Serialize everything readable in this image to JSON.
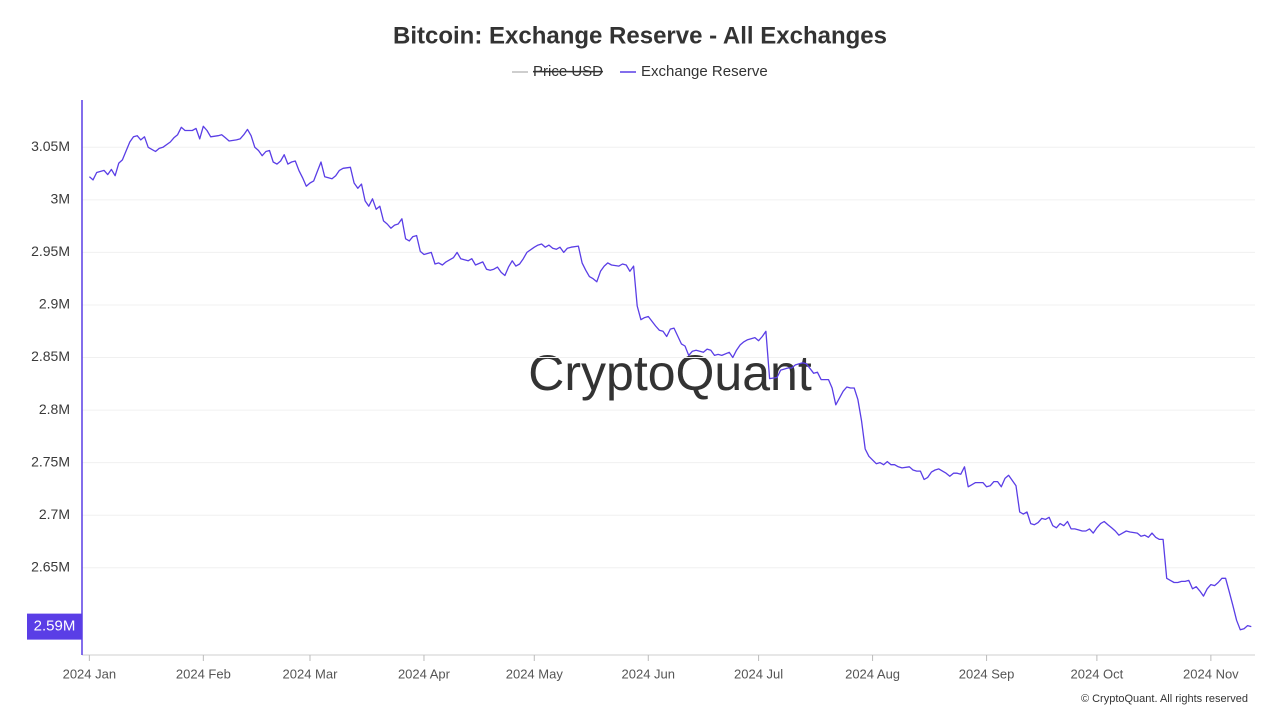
{
  "chart_data": {
    "type": "line",
    "title": "Bitcoin: Exchange Reserve - All Exchanges",
    "watermark": "CryptoQuant",
    "footer": "© CryptoQuant. All rights reserved",
    "last_value_label": "2.59M",
    "grid": true,
    "xlim": [
      -2,
      317
    ],
    "ylim": [
      2567000,
      3095000
    ],
    "xticks": [
      {
        "value": 0,
        "label": "2024 Jan"
      },
      {
        "value": 31,
        "label": "2024 Feb"
      },
      {
        "value": 60,
        "label": "2024 Mar"
      },
      {
        "value": 91,
        "label": "2024 Apr"
      },
      {
        "value": 121,
        "label": "2024 May"
      },
      {
        "value": 152,
        "label": "2024 Jun"
      },
      {
        "value": 182,
        "label": "2024 Jul"
      },
      {
        "value": 213,
        "label": "2024 Aug"
      },
      {
        "value": 244,
        "label": "2024 Sep"
      },
      {
        "value": 274,
        "label": "2024 Oct"
      },
      {
        "value": 305,
        "label": "2024 Nov"
      }
    ],
    "yticks": [
      {
        "value": 2650000,
        "label": "2.65M"
      },
      {
        "value": 2700000,
        "label": "2.7M"
      },
      {
        "value": 2750000,
        "label": "2.75M"
      },
      {
        "value": 2800000,
        "label": "2.8M"
      },
      {
        "value": 2850000,
        "label": "2.85M"
      },
      {
        "value": 2900000,
        "label": "2.9M"
      },
      {
        "value": 2950000,
        "label": "2.95M"
      },
      {
        "value": 3000000,
        "label": "3M"
      },
      {
        "value": 3050000,
        "label": "3.05M"
      }
    ],
    "x": [
      0,
      1,
      2,
      4,
      5,
      6,
      7,
      8,
      9,
      11,
      12,
      13,
      14,
      15,
      16,
      17,
      18,
      19,
      20,
      22,
      23,
      24,
      25,
      26,
      28,
      29,
      30,
      31,
      32,
      33,
      35,
      36,
      37,
      38,
      40,
      41,
      42,
      43,
      44,
      45,
      46,
      47,
      48,
      49,
      50,
      51,
      52,
      53,
      54,
      55,
      56,
      57,
      58,
      59,
      60,
      61,
      62,
      63,
      64,
      65,
      66,
      67,
      68,
      69,
      71,
      72,
      73,
      74,
      75,
      76,
      77,
      78,
      79,
      80,
      81,
      82,
      83,
      84,
      85,
      86,
      87,
      88,
      89,
      90,
      91,
      93,
      94,
      95,
      96,
      97,
      99,
      100,
      101,
      102,
      103,
      104,
      105,
      107,
      108,
      109,
      110,
      111,
      112,
      113,
      114,
      115,
      116,
      117,
      118,
      119,
      121,
      122,
      123,
      124,
      125,
      126,
      127,
      128,
      129,
      130,
      131,
      133,
      134,
      135,
      136,
      137,
      138,
      139,
      140,
      141,
      142,
      144,
      145,
      146,
      147,
      148,
      149,
      150,
      151,
      152,
      154,
      155,
      156,
      157,
      158,
      159,
      161,
      162,
      163,
      164,
      165,
      167,
      168,
      169,
      170,
      171,
      172,
      174,
      175,
      176,
      177,
      178,
      179,
      181,
      182,
      183,
      184,
      185,
      187,
      188,
      190,
      191,
      192,
      194,
      195,
      197,
      198,
      199,
      201,
      202,
      203,
      205,
      206,
      207,
      208,
      209,
      210,
      211,
      212,
      214,
      215,
      216,
      217,
      218,
      219,
      220,
      221,
      223,
      224,
      225,
      226,
      227,
      228,
      229,
      230,
      231,
      233,
      234,
      235,
      236,
      237,
      238,
      239,
      240,
      241,
      243,
      244,
      245,
      246,
      247,
      248,
      249,
      250,
      252,
      253,
      254,
      255,
      256,
      257,
      258,
      259,
      260,
      261,
      262,
      263,
      264,
      265,
      266,
      267,
      268,
      269,
      270,
      271,
      272,
      273,
      274,
      275,
      276,
      277,
      278,
      279,
      280,
      281,
      282,
      283,
      285,
      286,
      287,
      288,
      289,
      290,
      291,
      292,
      293,
      294,
      295,
      296,
      297,
      298,
      299,
      300,
      301,
      302,
      303,
      304,
      305,
      306,
      307,
      308,
      309,
      310,
      311,
      312,
      313,
      314,
      315,
      316
    ],
    "series": [
      {
        "name": "Price USD",
        "color": "#9e9e9e",
        "hidden": true
      },
      {
        "name": "Exchange Reserve",
        "color": "#5a3ee6",
        "values": [
          3022000,
          3019000,
          3026000,
          3028000,
          3024000,
          3029000,
          3023000,
          3035000,
          3038000,
          3055000,
          3060000,
          3061000,
          3057000,
          3060000,
          3050000,
          3048000,
          3046000,
          3049000,
          3050000,
          3055000,
          3059000,
          3062000,
          3069000,
          3066000,
          3066000,
          3068000,
          3058000,
          3070000,
          3066000,
          3060000,
          3061000,
          3062000,
          3059000,
          3056000,
          3057000,
          3058000,
          3062000,
          3067000,
          3061000,
          3050000,
          3047000,
          3042000,
          3046000,
          3047000,
          3036000,
          3034000,
          3037000,
          3043000,
          3034000,
          3036000,
          3037000,
          3028000,
          3021000,
          3013000,
          3016000,
          3018000,
          3027000,
          3036000,
          3022000,
          3021000,
          3020000,
          3023000,
          3028000,
          3030000,
          3031000,
          3016000,
          3011000,
          3015000,
          2999000,
          2994000,
          3001000,
          2991000,
          2994000,
          2980000,
          2977000,
          2973000,
          2976000,
          2977000,
          2982000,
          2963000,
          2961000,
          2965000,
          2966000,
          2951000,
          2948000,
          2950000,
          2939000,
          2940000,
          2938000,
          2941000,
          2945000,
          2950000,
          2944000,
          2943000,
          2942000,
          2944000,
          2938000,
          2941000,
          2934000,
          2933000,
          2934000,
          2936000,
          2931000,
          2928000,
          2936000,
          2942000,
          2937000,
          2939000,
          2944000,
          2950000,
          2955000,
          2957000,
          2958000,
          2955000,
          2957000,
          2954000,
          2953000,
          2955000,
          2950000,
          2954000,
          2955000,
          2956000,
          2940000,
          2933000,
          2927000,
          2925000,
          2922000,
          2932000,
          2937000,
          2940000,
          2938000,
          2937000,
          2939000,
          2938000,
          2932000,
          2937000,
          2899000,
          2886000,
          2888000,
          2889000,
          2880000,
          2876000,
          2875000,
          2870000,
          2877000,
          2878000,
          2863000,
          2861000,
          2852000,
          2856000,
          2857000,
          2855000,
          2858000,
          2857000,
          2852000,
          2853000,
          2852000,
          2855000,
          2850000,
          2857000,
          2862000,
          2865000,
          2867000,
          2869000,
          2866000,
          2870000,
          2875000,
          2830000,
          2831000,
          2838000,
          2840000,
          2840000,
          2843000,
          2845000,
          2844000,
          2835000,
          2836000,
          2829000,
          2829000,
          2821000,
          2805000,
          2818000,
          2822000,
          2821000,
          2821000,
          2810000,
          2790000,
          2763000,
          2756000,
          2749000,
          2750000,
          2748000,
          2751000,
          2748000,
          2748000,
          2746000,
          2745000,
          2746000,
          2743000,
          2742000,
          2742000,
          2734000,
          2736000,
          2741000,
          2743000,
          2744000,
          2740000,
          2737000,
          2740000,
          2740000,
          2739000,
          2746000,
          2727000,
          2729000,
          2731000,
          2731000,
          2727000,
          2728000,
          2732000,
          2732000,
          2727000,
          2735000,
          2738000,
          2728000,
          2703000,
          2701000,
          2703000,
          2692000,
          2691000,
          2693000,
          2697000,
          2696000,
          2698000,
          2690000,
          2688000,
          2692000,
          2690000,
          2694000,
          2687000,
          2687000,
          2686000,
          2685000,
          2685000,
          2687000,
          2683000,
          2688000,
          2692000,
          2694000,
          2691000,
          2688000,
          2685000,
          2681000,
          2683000,
          2685000,
          2684000,
          2683000,
          2680000,
          2681000,
          2679000,
          2683000,
          2679000,
          2677000,
          2677000,
          2640000,
          2638000,
          2636000,
          2636000,
          2637000,
          2637000,
          2638000,
          2630000,
          2632000,
          2628000,
          2623000,
          2630000,
          2634000,
          2633000,
          2636000,
          2640000,
          2640000,
          2627000,
          2614000,
          2600000,
          2591000,
          2592000,
          2595000,
          2594000
        ]
      }
    ]
  }
}
